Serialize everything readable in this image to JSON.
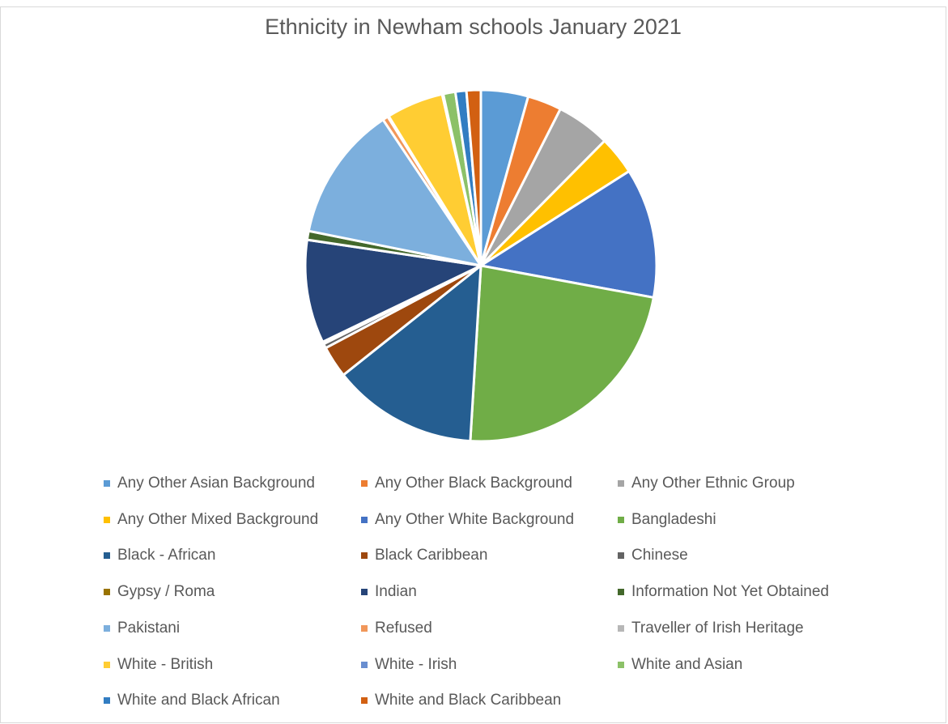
{
  "chart_data": {
    "type": "pie",
    "title": "Ethnicity in Newham schools January 2021",
    "legend_position": "bottom",
    "categories": [
      "Any Other Asian Background",
      "Any Other Black Background",
      "Any Other Ethnic Group",
      "Any Other Mixed Background",
      "Any Other White Background",
      "Bangladeshi",
      "Black - African",
      "Black Caribbean",
      "Chinese",
      "Gypsy / Roma",
      "Indian",
      "Information Not Yet Obtained",
      "Pakistani",
      "Refused",
      "Traveller of Irish Heritage",
      "White - British",
      "White - Irish",
      "White and Asian",
      "White and Black African",
      "White and Black Caribbean"
    ],
    "values": [
      4.3,
      3.1,
      4.9,
      3.5,
      11.8,
      22.8,
      13.2,
      2.9,
      0.4,
      0.2,
      9.4,
      0.8,
      12.3,
      0.5,
      0.1,
      5.2,
      0.1,
      1.1,
      1.0,
      1.3
    ],
    "colors": [
      "#5b9bd5",
      "#ed7d31",
      "#a5a5a5",
      "#ffc000",
      "#4472c4",
      "#70ad47",
      "#255e91",
      "#9e480e",
      "#636363",
      "#997300",
      "#264478",
      "#43682b",
      "#7cafdd",
      "#f1975a",
      "#b7b7b7",
      "#ffcd33",
      "#698ed0",
      "#8cc168",
      "#327dc2",
      "#d26012"
    ]
  }
}
